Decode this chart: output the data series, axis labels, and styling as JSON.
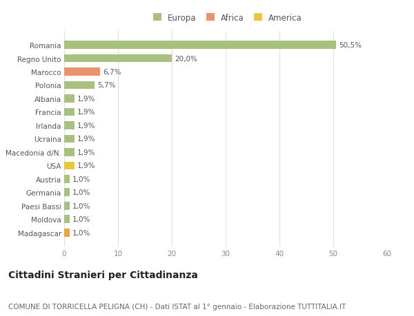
{
  "categories": [
    "Romania",
    "Regno Unito",
    "Marocco",
    "Polonia",
    "Albania",
    "Francia",
    "Irlanda",
    "Ucraina",
    "Macedonia d/N.",
    "USA",
    "Austria",
    "Germania",
    "Paesi Bassi",
    "Moldova",
    "Madagascar"
  ],
  "values": [
    50.5,
    20.0,
    6.7,
    5.7,
    1.9,
    1.9,
    1.9,
    1.9,
    1.9,
    1.9,
    1.0,
    1.0,
    1.0,
    1.0,
    1.0
  ],
  "labels": [
    "50,5%",
    "20,0%",
    "6,7%",
    "5,7%",
    "1,9%",
    "1,9%",
    "1,9%",
    "1,9%",
    "1,9%",
    "1,9%",
    "1,0%",
    "1,0%",
    "1,0%",
    "1,0%",
    "1,0%"
  ],
  "colors": [
    "#a8c080",
    "#a8c080",
    "#e8956d",
    "#a8c080",
    "#a8c080",
    "#a8c080",
    "#a8c080",
    "#a8c080",
    "#a8c080",
    "#e8c840",
    "#a8c080",
    "#a8c080",
    "#a8c080",
    "#a8c080",
    "#e8a840"
  ],
  "legend": [
    {
      "label": "Europa",
      "color": "#a8c080"
    },
    {
      "label": "Africa",
      "color": "#e8956d"
    },
    {
      "label": "America",
      "color": "#e8c840"
    }
  ],
  "xlim": [
    0,
    60
  ],
  "xticks": [
    0,
    10,
    20,
    30,
    40,
    50,
    60
  ],
  "title": "Cittadini Stranieri per Cittadinanza",
  "subtitle": "COMUNE DI TORRICELLA PELIGNA (CH) - Dati ISTAT al 1° gennaio - Elaborazione TUTTITALIA.IT",
  "bg_color": "#ffffff",
  "grid_color": "#e0e0e0",
  "title_fontsize": 10,
  "subtitle_fontsize": 7.5,
  "label_fontsize": 7.5,
  "tick_fontsize": 7.5,
  "legend_fontsize": 8.5
}
